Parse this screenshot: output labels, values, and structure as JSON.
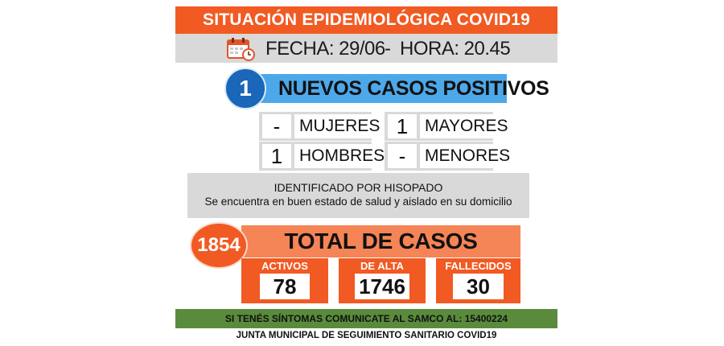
{
  "header": {
    "title": "SITUACIÓN EPIDEMIOLÓGICA COVID19"
  },
  "datebar": {
    "fecha": "FECHA: 29/06",
    "separator": "-",
    "hora": "HORA: 20.45",
    "icon": "calendar-clock-icon"
  },
  "new_cases": {
    "count": "1",
    "label": "NUEVOS CASOS POSITIVOS",
    "breakdown": [
      {
        "value": "-",
        "label": "MUJERES"
      },
      {
        "value": "1",
        "label": "MAYORES"
      },
      {
        "value": "1",
        "label": "HOMBRES"
      },
      {
        "value": "-",
        "label": "MENORES"
      }
    ]
  },
  "info": {
    "line1": "IDENTIFICADO POR HISOPADO",
    "line2": "Se encuentra en buen estado de salud y aislado en su domicilio"
  },
  "totals": {
    "count": "1854",
    "label": "TOTAL DE CASOS",
    "stats": [
      {
        "title": "ACTIVOS",
        "value": "78"
      },
      {
        "title": "DE ALTA",
        "value": "1746"
      },
      {
        "title": "FALLECIDOS",
        "value": "30"
      }
    ]
  },
  "footer": {
    "contact": "SI TENÉS SÍNTOMAS COMUNICATE AL SAMCO AL: 15400224",
    "org": "JUNTA MUNICIPAL DE SEGUIMIENTO SANITARIO COVID19"
  },
  "colors": {
    "orange": "#f15a22",
    "light_orange": "#f58456",
    "blue": "#1a66b8",
    "light_blue": "#4da8ea",
    "gray": "#d9d9d9",
    "green": "#5a8b3c"
  }
}
